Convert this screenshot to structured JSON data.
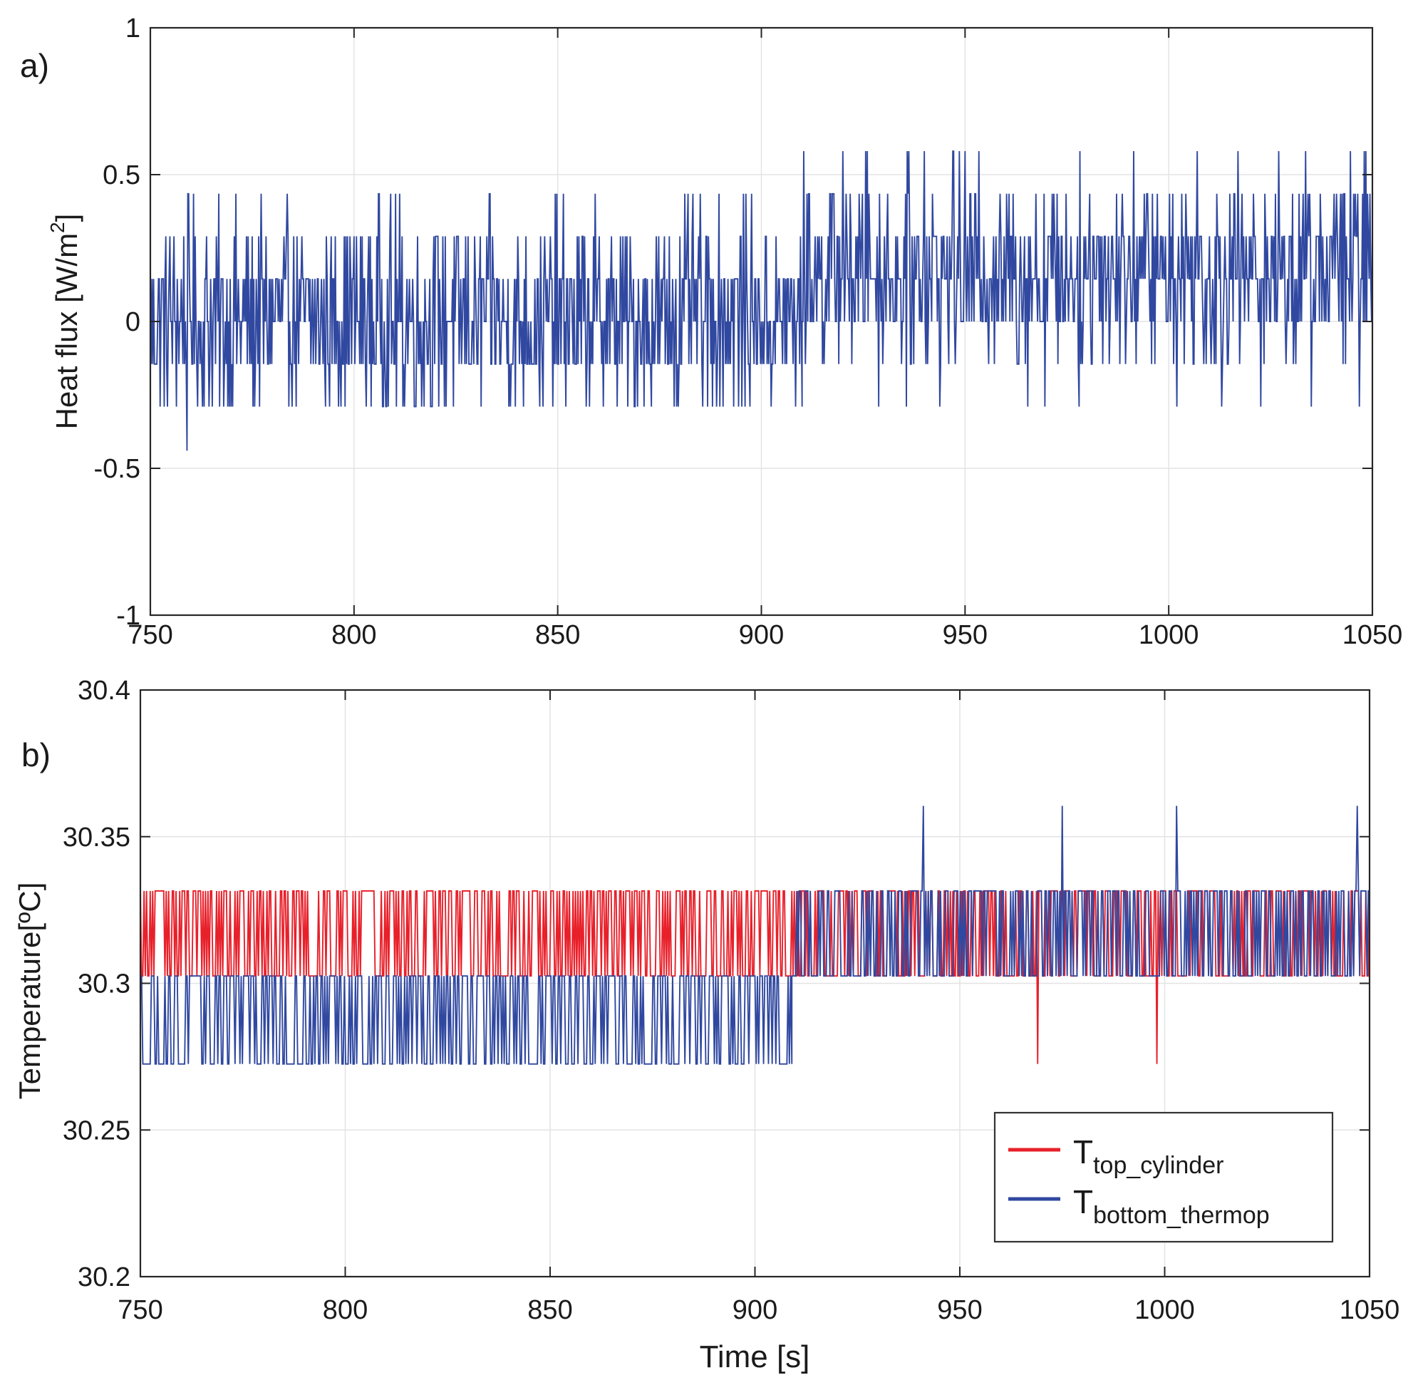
{
  "figure": {
    "xlabel": "Time [s]"
  },
  "chart_data": [
    {
      "type": "line",
      "panel_label": "a)",
      "ylabel_main": "Heat flux [W/m",
      "ylabel_sup": "2",
      "ylabel_close": "]",
      "xlim": [
        750,
        1050
      ],
      "ylim": [
        -1,
        1
      ],
      "xticks": [
        750,
        800,
        850,
        900,
        950,
        1000,
        1050
      ],
      "yticks": [
        -1,
        -0.5,
        0,
        0.5,
        1
      ],
      "ytick_labels": [
        "-1",
        "-0.5",
        "0",
        "0.5",
        "1"
      ],
      "grid": true,
      "colors": {
        "series": "#3048a0"
      },
      "series": [
        {
          "name": "Heat flux",
          "levels": [
            -0.44,
            -0.29,
            -0.145,
            0,
            0.145,
            0.29,
            0.435,
            0.58
          ],
          "dt": 0.2,
          "segments": [
            {
              "t0": 750,
              "t1": 910,
              "weights": [
                0.0,
                0.1,
                0.25,
                0.28,
                0.24,
                0.11,
                0.02,
                0.0
              ]
            },
            {
              "t0": 910,
              "t1": 1050,
              "weights": [
                0.0,
                0.01,
                0.07,
                0.22,
                0.3,
                0.26,
                0.12,
                0.02
              ]
            }
          ],
          "spikes": [
            [
              759,
              -0.44
            ],
            [
              920,
              0.58
            ],
            [
              926,
              0.58
            ],
            [
              940,
              0.58
            ],
            [
              947,
              0.58
            ],
            [
              978,
              0.58
            ],
            [
              978,
              -0.29
            ],
            [
              1007,
              0.58
            ],
            [
              1048,
              0.58
            ]
          ]
        }
      ]
    },
    {
      "type": "line",
      "panel_label": "b)",
      "ylabel": "Temperature[ºC]",
      "xlim": [
        750,
        1050
      ],
      "ylim": [
        30.2,
        30.4
      ],
      "xticks": [
        750,
        800,
        850,
        900,
        950,
        1000,
        1050
      ],
      "yticks": [
        30.2,
        30.25,
        30.3,
        30.35,
        30.4
      ],
      "ytick_labels": [
        "30.2",
        "30.25",
        "30.3",
        "30.35",
        "30.4"
      ],
      "grid": true,
      "legend_position": "bottom-right",
      "series": [
        {
          "name_main": "T",
          "name_sub": "top_cylinder",
          "color": "#e8202a",
          "levels": [
            30.2725,
            30.3025,
            30.3315
          ],
          "dt": 0.3,
          "segments": [
            {
              "t0": 750,
              "t1": 1050,
              "weights": [
                0.0,
                0.5,
                0.5
              ]
            }
          ],
          "spikes": [
            [
              969,
              30.2725
            ],
            [
              998,
              30.2725
            ]
          ]
        },
        {
          "name_main": "T",
          "name_sub": "bottom_thermop",
          "color": "#3048a0",
          "levels": [
            30.2725,
            30.3025,
            30.3315,
            30.3605
          ],
          "dt": 0.3,
          "segments": [
            {
              "t0": 750,
              "t1": 909,
              "weights": [
                0.45,
                0.55,
                0.0,
                0.0
              ]
            },
            {
              "t0": 909,
              "t1": 1050,
              "weights": [
                0.0,
                0.5,
                0.5,
                0.0
              ]
            }
          ],
          "spikes": [
            [
              941,
              30.3605
            ],
            [
              975,
              30.3605
            ],
            [
              1003,
              30.3605
            ],
            [
              1047,
              30.3605
            ]
          ]
        }
      ]
    }
  ]
}
